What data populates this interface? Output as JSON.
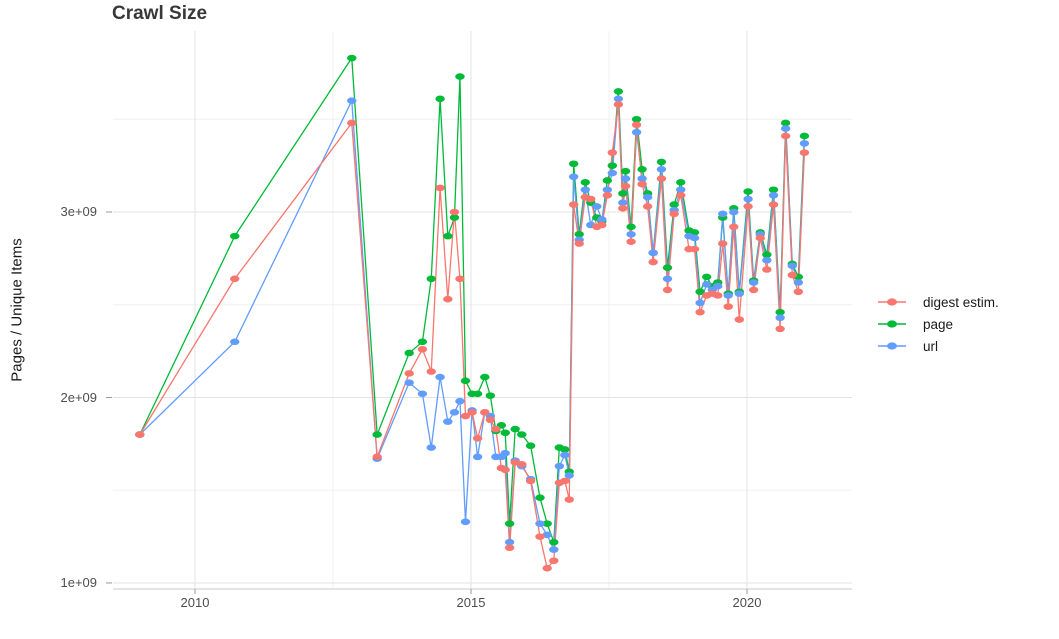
{
  "title": "Crawl Size",
  "chart_data": {
    "type": "line",
    "title": "Crawl Size",
    "xlabel": "",
    "ylabel": "Pages / Unique Items",
    "values_unit": "1e9 (billions of pages / unique items)",
    "xlim": [
      2008.5,
      2021.8
    ],
    "ylim": [
      0.95,
      4.0
    ],
    "grid": true,
    "legend_position": "right",
    "yticks": [
      {
        "label": "1e+09",
        "value": 1.0
      },
      {
        "label": "2e+09",
        "value": 2.0
      },
      {
        "label": "3e+09",
        "value": 3.0
      }
    ],
    "yticks_minor": [
      1.5,
      2.5,
      3.5
    ],
    "xticks": [
      {
        "label": "2010",
        "value": 2010
      },
      {
        "label": "2015",
        "value": 2015
      },
      {
        "label": "2020",
        "value": 2020
      }
    ],
    "xticks_minor": [
      2012.5,
      2017.5
    ],
    "x": [
      2009.0,
      2010.72,
      2012.84,
      2013.3,
      2013.88,
      2014.12,
      2014.28,
      2014.44,
      2014.58,
      2014.7,
      2014.8,
      2014.9,
      2015.02,
      2015.12,
      2015.25,
      2015.35,
      2015.45,
      2015.55,
      2015.62,
      2015.7,
      2015.8,
      2015.92,
      2016.08,
      2016.25,
      2016.38,
      2016.5,
      2016.6,
      2016.7,
      2016.78,
      2016.86,
      2016.96,
      2017.07,
      2017.17,
      2017.28,
      2017.37,
      2017.47,
      2017.56,
      2017.67,
      2017.75,
      2017.8,
      2017.9,
      2018.0,
      2018.1,
      2018.2,
      2018.3,
      2018.45,
      2018.56,
      2018.68,
      2018.8,
      2018.95,
      2019.05,
      2019.15,
      2019.27,
      2019.37,
      2019.47,
      2019.56,
      2019.66,
      2019.76,
      2019.86,
      2020.02,
      2020.12,
      2020.24,
      2020.36,
      2020.48,
      2020.6,
      2020.7,
      2020.82,
      2020.93,
      2021.04
    ],
    "series": [
      {
        "name": "digest estim.",
        "color": "#F8766D",
        "values": [
          1.8,
          2.64,
          3.48,
          1.68,
          2.13,
          2.26,
          2.14,
          3.13,
          2.53,
          3.0,
          2.64,
          1.9,
          1.92,
          1.78,
          1.92,
          1.88,
          1.83,
          1.62,
          1.61,
          1.19,
          1.65,
          1.64,
          1.55,
          1.25,
          1.08,
          1.12,
          1.54,
          1.55,
          1.45,
          3.04,
          2.83,
          3.08,
          3.07,
          2.92,
          2.93,
          3.09,
          3.32,
          3.58,
          3.02,
          3.14,
          2.84,
          3.47,
          3.15,
          3.03,
          2.73,
          3.18,
          2.58,
          2.99,
          3.09,
          2.8,
          2.8,
          2.46,
          2.55,
          2.56,
          2.55,
          2.83,
          2.49,
          2.92,
          2.42,
          3.03,
          2.58,
          2.86,
          2.69,
          3.04,
          2.37,
          3.41,
          2.66,
          2.57,
          3.32
        ]
      },
      {
        "name": "page",
        "color": "#00BA38",
        "values": [
          1.8,
          2.87,
          3.83,
          1.8,
          2.24,
          2.3,
          2.64,
          3.61,
          2.87,
          2.97,
          3.73,
          2.09,
          2.02,
          2.02,
          2.11,
          2.01,
          1.82,
          1.85,
          1.81,
          1.32,
          1.83,
          1.8,
          1.74,
          1.46,
          1.32,
          1.22,
          1.73,
          1.72,
          1.6,
          3.26,
          2.88,
          3.16,
          3.05,
          2.97,
          2.95,
          3.17,
          3.25,
          3.65,
          3.1,
          3.22,
          2.92,
          3.5,
          3.23,
          3.1,
          2.78,
          3.27,
          2.7,
          3.04,
          3.16,
          2.9,
          2.89,
          2.57,
          2.65,
          2.6,
          2.62,
          2.97,
          2.56,
          3.02,
          2.57,
          3.11,
          2.63,
          2.89,
          2.77,
          3.12,
          2.46,
          3.48,
          2.72,
          2.65,
          3.41
        ]
      },
      {
        "name": "url",
        "color": "#619CFF",
        "values": [
          1.8,
          2.3,
          3.6,
          1.67,
          2.08,
          2.02,
          1.73,
          2.11,
          1.87,
          1.92,
          1.98,
          1.33,
          1.93,
          1.68,
          1.92,
          1.9,
          1.68,
          1.68,
          1.7,
          1.22,
          1.66,
          1.63,
          1.56,
          1.32,
          1.26,
          1.18,
          1.63,
          1.69,
          1.58,
          3.19,
          2.85,
          3.12,
          2.93,
          3.03,
          2.96,
          3.12,
          3.21,
          3.61,
          3.05,
          3.18,
          2.88,
          3.43,
          3.18,
          3.08,
          2.78,
          3.23,
          2.64,
          3.01,
          3.12,
          2.87,
          2.86,
          2.51,
          2.61,
          2.58,
          2.6,
          2.99,
          2.55,
          3.0,
          2.56,
          3.07,
          2.62,
          2.88,
          2.74,
          3.09,
          2.43,
          3.45,
          2.71,
          2.62,
          3.37
        ]
      }
    ]
  }
}
